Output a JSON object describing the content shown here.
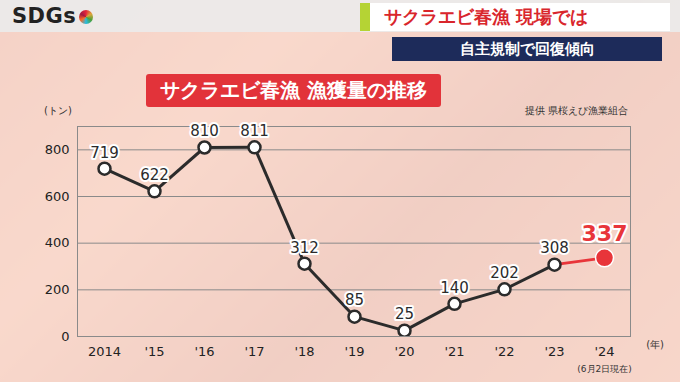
{
  "header": {
    "logo": "SDGs",
    "headline": "サクラエビ春漁 現場では",
    "subheadline": "自主規制で回復傾向"
  },
  "chart_data": {
    "type": "line",
    "title": "サクラエビ春漁 漁獲量の推移",
    "source": "提供 県桜えび漁業組合",
    "y_label": "(トン)",
    "x_label": "(年)",
    "categories": [
      "2014",
      "'15",
      "'16",
      "'17",
      "'18",
      "'19",
      "'20",
      "'21",
      "'22",
      "'23",
      "'24"
    ],
    "values": [
      719,
      622,
      810,
      811,
      312,
      85,
      25,
      140,
      202,
      308,
      337
    ],
    "colors": [
      "#2b2b2b",
      "#2b2b2b",
      "#2b2b2b",
      "#2b2b2b",
      "#2b2b2b",
      "#2b2b2b",
      "#2b2b2b",
      "#2b2b2b",
      "#2b2b2b",
      "#2b2b2b",
      "#e8353a"
    ],
    "annotations": [
      {
        "category": "'24",
        "text": "(6月2日現在)"
      }
    ],
    "ylim": [
      0,
      900
    ],
    "yticks": [
      0,
      200,
      400,
      600,
      800
    ],
    "grid": true,
    "data_labels": true,
    "marker": "circle"
  }
}
